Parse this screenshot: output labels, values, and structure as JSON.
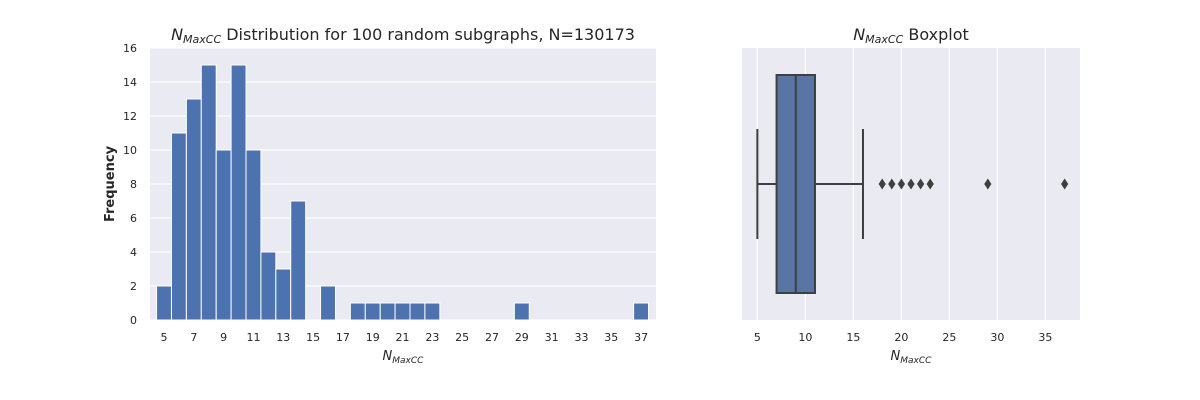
{
  "chart_data": [
    {
      "type": "bar",
      "title_main": "N",
      "title_sub": "MaxCC",
      "title_rest": " Distribution for 100 random subgraphs, N=130173",
      "xlabel_main": "N",
      "xlabel_sub": "MaxCC",
      "ylabel": "Frequency",
      "x": [
        5,
        6,
        7,
        8,
        9,
        10,
        11,
        12,
        13,
        14,
        16,
        18,
        19,
        20,
        21,
        22,
        23,
        29,
        37
      ],
      "values": [
        2,
        11,
        13,
        15,
        10,
        15,
        10,
        4,
        3,
        7,
        2,
        1,
        1,
        1,
        1,
        1,
        1,
        1,
        1
      ],
      "xticks": [
        5,
        7,
        9,
        11,
        13,
        15,
        17,
        19,
        21,
        23,
        25,
        27,
        29,
        31,
        33,
        35,
        37
      ],
      "yticks": [
        0,
        2,
        4,
        6,
        8,
        10,
        12,
        14,
        16
      ],
      "ylim": [
        0,
        16
      ],
      "xlim": [
        4.06,
        38
      ],
      "bar_color": "#4c72b0",
      "background": "#eaeaf2",
      "grid": "horizontal"
    },
    {
      "type": "boxplot",
      "title_main": "N",
      "title_sub": "MaxCC",
      "title_rest": " Boxplot",
      "xlabel_main": "N",
      "xlabel_sub": "MaxCC",
      "whisker_low": 5,
      "q1": 7,
      "median": 9,
      "q3": 11,
      "whisker_high": 16,
      "outliers": [
        18,
        19,
        20,
        21,
        22,
        23,
        29,
        37
      ],
      "xticks": [
        5,
        10,
        15,
        20,
        25,
        30,
        35
      ],
      "xlim": [
        3.4,
        38.6
      ],
      "box_color": "#5975a4",
      "line_color": "#3f3f3f",
      "background": "#eaeaf2",
      "grid": "vertical"
    }
  ]
}
